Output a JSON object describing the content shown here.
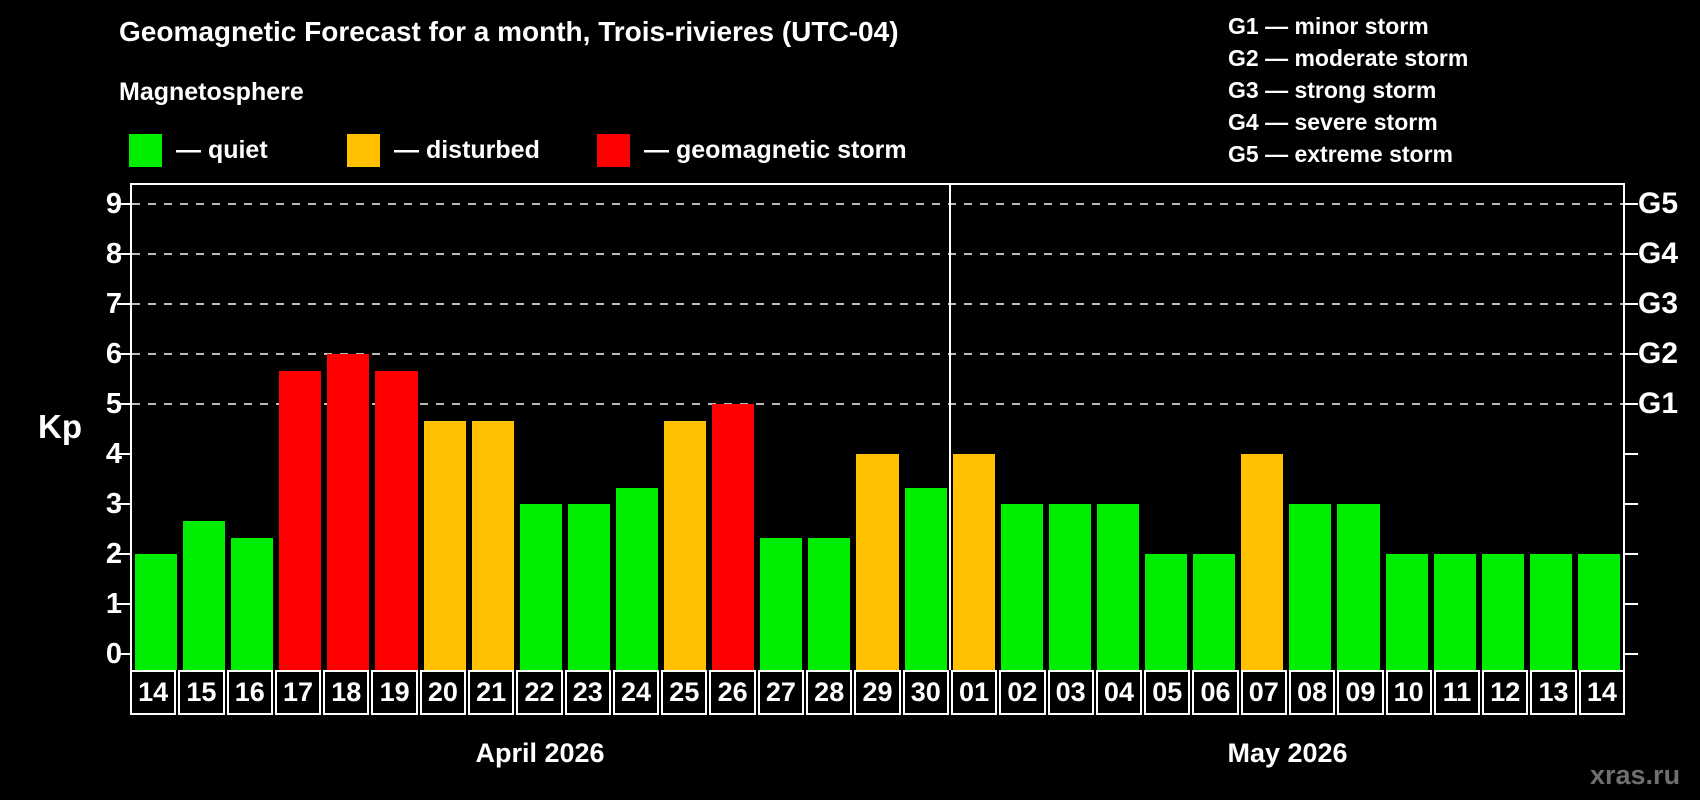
{
  "header": {
    "title": "Geomagnetic Forecast for a month, Trois-rivieres (UTC-04)"
  },
  "legend": {
    "title": "Magnetosphere",
    "items": [
      {
        "key": "quiet",
        "label": "— quiet",
        "color": "#00ef00"
      },
      {
        "key": "disturbed",
        "label": "— disturbed",
        "color": "#ffc000"
      },
      {
        "key": "storm",
        "label": "— geomagnetic storm",
        "color": "#ff0000"
      }
    ]
  },
  "storm_scale_legend": [
    {
      "level": "G1",
      "label": "G1 — minor storm"
    },
    {
      "level": "G2",
      "label": "G2 — moderate storm"
    },
    {
      "level": "G3",
      "label": "G3 — strong storm"
    },
    {
      "level": "G4",
      "label": "G4 — severe storm"
    },
    {
      "level": "G5",
      "label": "G5 — extreme storm"
    }
  ],
  "chart_data": {
    "type": "bar",
    "title": "Geomagnetic Forecast for a month, Trois-rivieres (UTC-04)",
    "ylabel": "Kp",
    "ylim": [
      0,
      9
    ],
    "yticks": [
      0,
      1,
      2,
      3,
      4,
      5,
      6,
      7,
      8,
      9
    ],
    "gridlines_at": [
      5,
      6,
      7,
      8,
      9
    ],
    "grid": "dashed horizontal at G-storm levels only",
    "right_axis_labels": [
      {
        "kp": 5,
        "label": "G1"
      },
      {
        "kp": 6,
        "label": "G2"
      },
      {
        "kp": 7,
        "label": "G3"
      },
      {
        "kp": 8,
        "label": "G4"
      },
      {
        "kp": 9,
        "label": "G5"
      }
    ],
    "months": [
      {
        "label": "April 2026",
        "days": 17
      },
      {
        "label": "May 2026",
        "days": 14
      }
    ],
    "bars": [
      {
        "date": "14",
        "kp": 2.0,
        "status": "quiet"
      },
      {
        "date": "15",
        "kp": 2.67,
        "status": "quiet"
      },
      {
        "date": "16",
        "kp": 2.33,
        "status": "quiet"
      },
      {
        "date": "17",
        "kp": 5.67,
        "status": "storm"
      },
      {
        "date": "18",
        "kp": 6.0,
        "status": "storm"
      },
      {
        "date": "19",
        "kp": 5.67,
        "status": "storm"
      },
      {
        "date": "20",
        "kp": 4.67,
        "status": "disturbed"
      },
      {
        "date": "21",
        "kp": 4.67,
        "status": "disturbed"
      },
      {
        "date": "22",
        "kp": 3.0,
        "status": "quiet"
      },
      {
        "date": "23",
        "kp": 3.0,
        "status": "quiet"
      },
      {
        "date": "24",
        "kp": 3.33,
        "status": "quiet"
      },
      {
        "date": "25",
        "kp": 4.67,
        "status": "disturbed"
      },
      {
        "date": "26",
        "kp": 5.0,
        "status": "storm"
      },
      {
        "date": "27",
        "kp": 2.33,
        "status": "quiet"
      },
      {
        "date": "28",
        "kp": 2.33,
        "status": "quiet"
      },
      {
        "date": "29",
        "kp": 4.0,
        "status": "disturbed"
      },
      {
        "date": "30",
        "kp": 3.33,
        "status": "quiet"
      },
      {
        "date": "01",
        "kp": 4.0,
        "status": "disturbed"
      },
      {
        "date": "02",
        "kp": 3.0,
        "status": "quiet"
      },
      {
        "date": "03",
        "kp": 3.0,
        "status": "quiet"
      },
      {
        "date": "04",
        "kp": 3.0,
        "status": "quiet"
      },
      {
        "date": "05",
        "kp": 2.0,
        "status": "quiet"
      },
      {
        "date": "06",
        "kp": 2.0,
        "status": "quiet"
      },
      {
        "date": "07",
        "kp": 4.0,
        "status": "disturbed"
      },
      {
        "date": "08",
        "kp": 3.0,
        "status": "quiet"
      },
      {
        "date": "09",
        "kp": 3.0,
        "status": "quiet"
      },
      {
        "date": "10",
        "kp": 2.0,
        "status": "quiet"
      },
      {
        "date": "11",
        "kp": 2.0,
        "status": "quiet"
      },
      {
        "date": "12",
        "kp": 2.0,
        "status": "quiet"
      },
      {
        "date": "13",
        "kp": 2.0,
        "status": "quiet"
      },
      {
        "date": "14",
        "kp": 2.0,
        "status": "quiet"
      }
    ]
  },
  "watermark": "xras.ru",
  "colors": {
    "background": "#000000",
    "text": "#ffffff",
    "axis": "#ffffff",
    "gridline": "#bbbbbb",
    "month_divider": "#ffffff",
    "watermark": "#6f6f6f"
  }
}
